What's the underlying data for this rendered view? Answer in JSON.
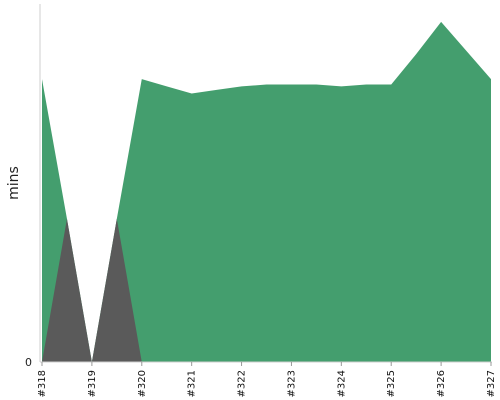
{
  "chart_data": {
    "type": "area",
    "categories": [
      "#318",
      "#319",
      "#320",
      "#321",
      "#322",
      "#323",
      "#324",
      "#325",
      "#326",
      "#327"
    ],
    "x": [
      0,
      0.5,
      1,
      1.5,
      2,
      2.5,
      3,
      3.5,
      4,
      4.5,
      5,
      5.5,
      6,
      6.5,
      7,
      7.5,
      8,
      8.5,
      9
    ],
    "series": [
      {
        "color": "#449e6e",
        "values": [
          79,
          40,
          0,
          40,
          79,
          77,
          75,
          76,
          77,
          77.5,
          77.5,
          77.5,
          77,
          77.5,
          77.5,
          86,
          95,
          87,
          79
        ]
      },
      {
        "color": "#5a5a5a",
        "values": [
          0,
          40,
          0,
          40,
          0,
          0,
          0,
          0,
          0,
          0,
          0,
          0,
          0,
          0,
          0,
          0,
          0,
          0,
          0
        ]
      }
    ],
    "xlabel": "",
    "ylabel": "mins",
    "yticks": [
      0
    ],
    "ylim": [
      0,
      100
    ],
    "grid": false,
    "legend": "none"
  },
  "y_tick_labels": [
    "0"
  ]
}
